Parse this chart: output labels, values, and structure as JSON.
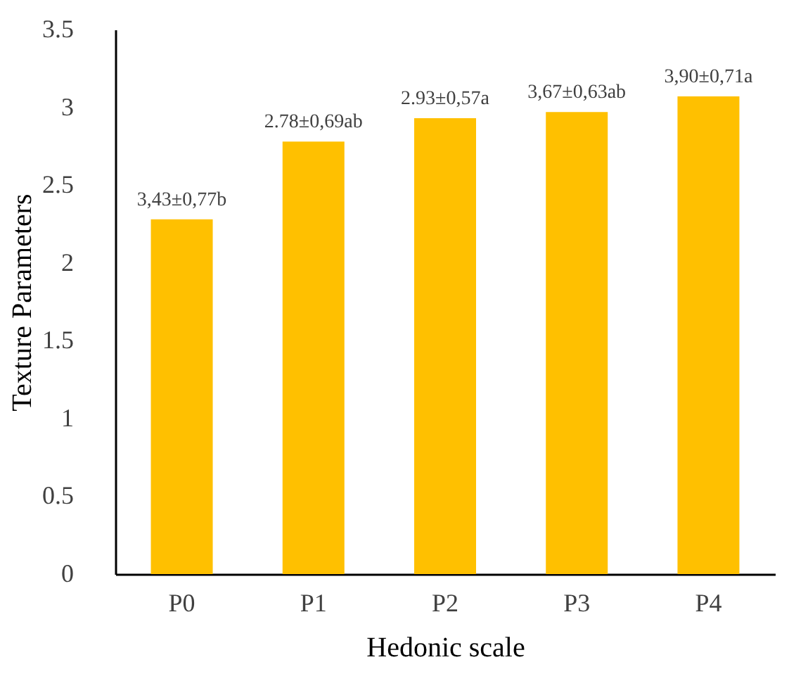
{
  "chart_data": {
    "type": "bar",
    "xlabel": "Hedonic scale",
    "ylabel": "Texture Parameters",
    "categories": [
      "P0",
      "P1",
      "P2",
      "P3",
      "P4"
    ],
    "values": [
      2.28,
      2.78,
      2.93,
      2.97,
      3.07
    ],
    "annotations": [
      {
        "text": "3,43±0,77b",
        "x": "P0",
        "y": 2.28
      },
      {
        "text": "2.78±0,69ab",
        "x": "P1",
        "y": 2.78
      },
      {
        "text": "2.93±0,57a",
        "x": "P2",
        "y": 2.93
      },
      {
        "text": "3,67±0,63ab",
        "x": "P3",
        "y": 2.97
      },
      {
        "text": "3,90±0,71a",
        "x": "P4",
        "y": 3.07
      }
    ],
    "color": "#ffc000",
    "ylim": [
      0,
      3.5
    ],
    "yticks": [
      0,
      0.5,
      1,
      1.5,
      2,
      2.5,
      3,
      3.5
    ],
    "grid": false
  }
}
